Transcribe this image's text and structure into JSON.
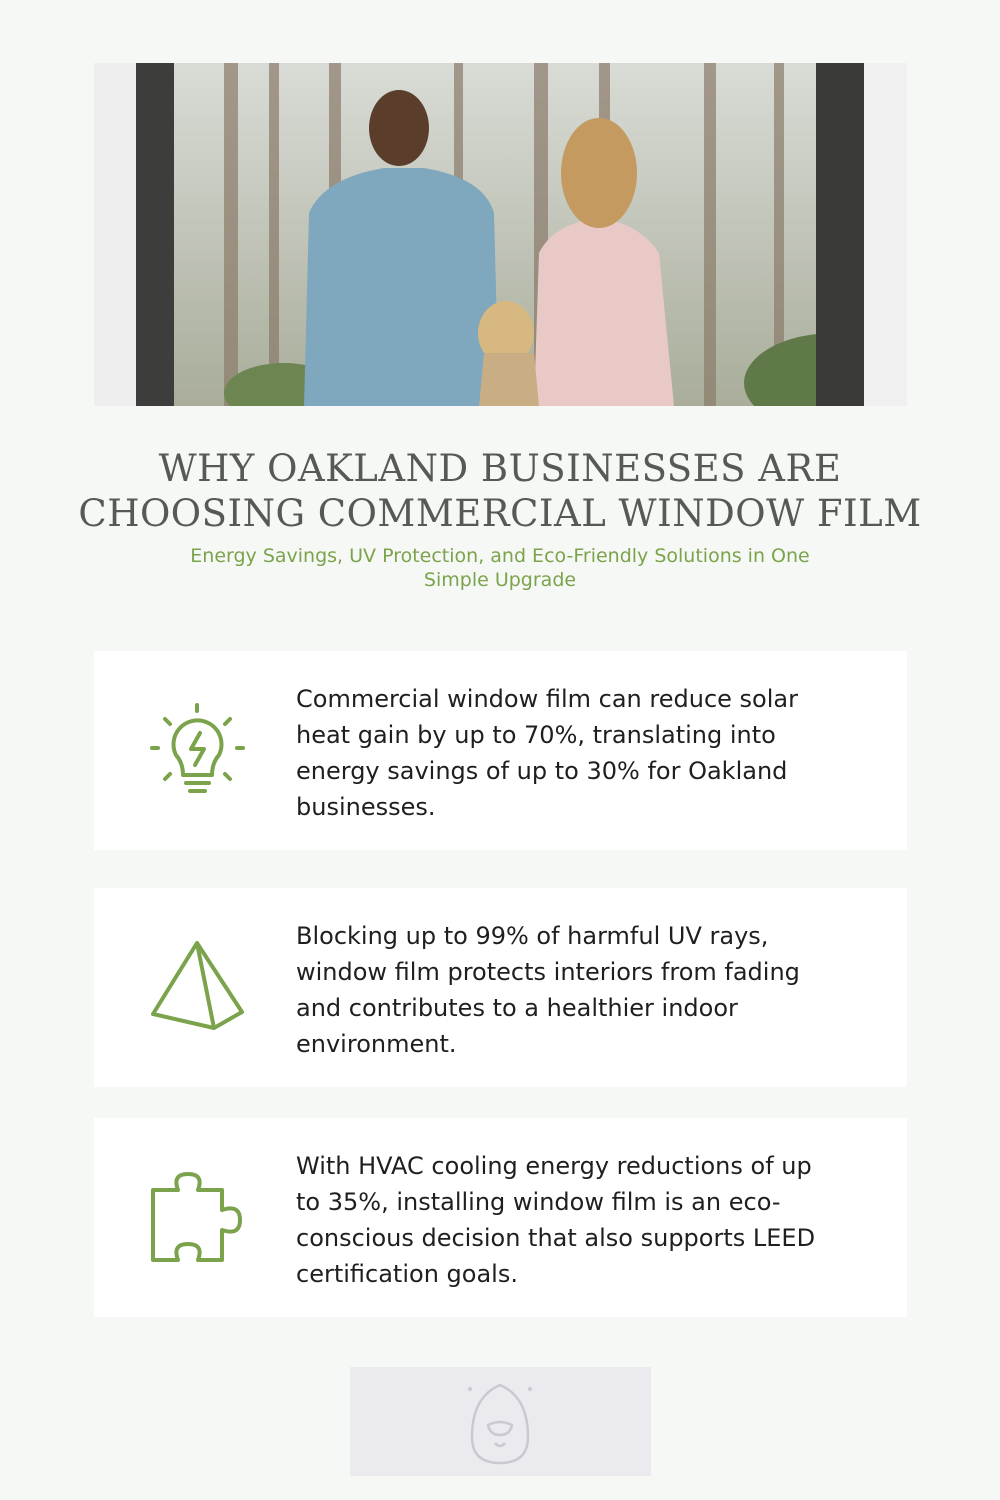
{
  "header": {
    "title": "WHY OAKLAND BUSINESSES ARE CHOOSING COMMERCIAL WINDOW FILM",
    "subtitle": "Energy Savings, UV Protection, and Eco-Friendly Solutions in One Simple Upgrade"
  },
  "cards": [
    {
      "text": "Commercial window film can reduce solar heat gain by up to 70%, translating into energy savings of up to 30% for Oakland businesses."
    },
    {
      "text": "Blocking up to 99% of harmful UV rays, window film protects interiors from fading and contributes to a healthier indoor environment."
    },
    {
      "text": "With HVAC cooling energy reductions of up to 35%, installing window film is an eco-conscious decision that also supports LEED certification goals."
    }
  ]
}
